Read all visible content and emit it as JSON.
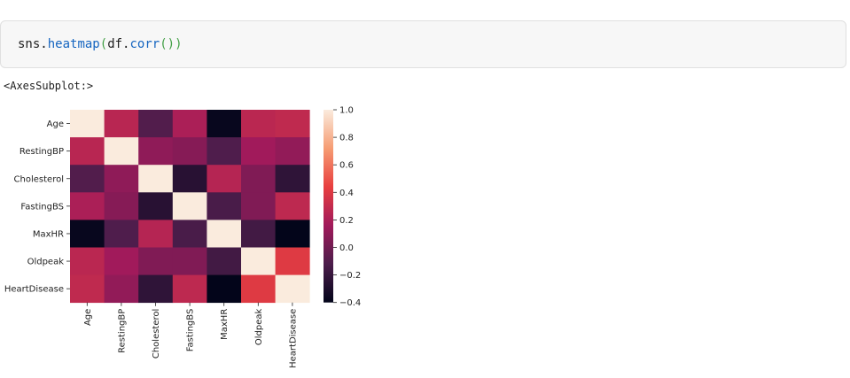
{
  "cell": {
    "code": {
      "obj": "sns",
      "dot1": ".",
      "fn": "heatmap",
      "open1": "(",
      "arg_obj": "df",
      "dot2": ".",
      "arg_fn": "corr",
      "open2": "(",
      "close2": ")",
      "close1": ")"
    },
    "output": "<AxesSubplot:>"
  },
  "chart_data": {
    "type": "heatmap",
    "title": "",
    "xlabel": "",
    "ylabel": "",
    "rows": [
      "Age",
      "RestingBP",
      "Cholesterol",
      "FastingBS",
      "MaxHR",
      "Oldpeak",
      "HeartDisease"
    ],
    "columns": [
      "Age",
      "RestingBP",
      "Cholesterol",
      "FastingBS",
      "MaxHR",
      "Oldpeak",
      "HeartDisease"
    ],
    "values": [
      [
        1.0,
        0.25,
        -0.1,
        0.2,
        -0.38,
        0.26,
        0.28
      ],
      [
        0.25,
        1.0,
        0.1,
        0.07,
        -0.11,
        0.16,
        0.11
      ],
      [
        -0.1,
        0.1,
        1.0,
        -0.26,
        0.24,
        0.05,
        -0.23
      ],
      [
        0.2,
        0.07,
        -0.26,
        1.0,
        -0.13,
        0.05,
        0.27
      ],
      [
        -0.38,
        -0.11,
        0.24,
        -0.13,
        1.0,
        -0.16,
        -0.4
      ],
      [
        0.26,
        0.16,
        0.05,
        0.05,
        -0.16,
        1.0,
        0.4
      ],
      [
        0.28,
        0.11,
        -0.23,
        0.27,
        -0.4,
        0.4,
        1.0
      ]
    ],
    "colorbar": {
      "min": -0.4,
      "max": 1.0,
      "ticks": [
        1.0,
        0.8,
        0.6,
        0.4,
        0.2,
        0.0,
        -0.2,
        -0.4
      ],
      "tick_labels": [
        "1.0",
        "0.8",
        "0.6",
        "0.4",
        "0.2",
        "0.0",
        "−0.2",
        "−0.4"
      ]
    },
    "colormap": {
      "name": "rocket",
      "stops": [
        "#03051a",
        "#4c1d4b",
        "#a11a5b",
        "#e83f3f",
        "#f69c73",
        "#faebdd"
      ]
    },
    "grid": false,
    "legend": "colorbar-right"
  }
}
